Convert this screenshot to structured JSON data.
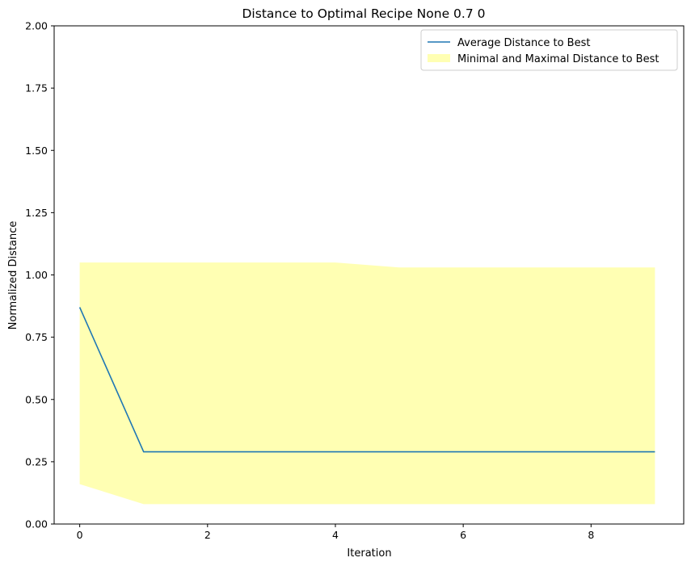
{
  "chart_data": {
    "type": "line",
    "title": "Distance to Optimal Recipe None 0.7 0",
    "xlabel": "Iteration",
    "ylabel": "Normalized Distance",
    "xlim": [
      -0.4,
      9.45
    ],
    "ylim": [
      0,
      2
    ],
    "xticks": [
      0,
      2,
      4,
      6,
      8
    ],
    "xtick_labels": [
      "0",
      "2",
      "4",
      "6",
      "8"
    ],
    "yticks": [
      0,
      0.25,
      0.5,
      0.75,
      1.0,
      1.25,
      1.5,
      1.75,
      2.0
    ],
    "ytick_labels": [
      "0.00",
      "0.25",
      "0.50",
      "0.75",
      "1.00",
      "1.25",
      "1.50",
      "1.75",
      "2.00"
    ],
    "grid": false,
    "legend_position": "top-right",
    "x": [
      0,
      1,
      2,
      3,
      4,
      5,
      6,
      7,
      8,
      9
    ],
    "series": [
      {
        "name": "Average Distance to Best",
        "kind": "line",
        "color": "#1f77b4",
        "values": [
          0.87,
          0.29,
          0.29,
          0.29,
          0.29,
          0.29,
          0.29,
          0.29,
          0.29,
          0.29
        ]
      },
      {
        "name": "Minimal and Maximal Distance to Best",
        "kind": "band",
        "color": "#ffff99",
        "lower": [
          0.16,
          0.08,
          0.08,
          0.08,
          0.08,
          0.08,
          0.08,
          0.08,
          0.08,
          0.08
        ],
        "upper": [
          1.05,
          1.05,
          1.05,
          1.05,
          1.05,
          1.03,
          1.03,
          1.03,
          1.03,
          1.03
        ]
      }
    ]
  }
}
